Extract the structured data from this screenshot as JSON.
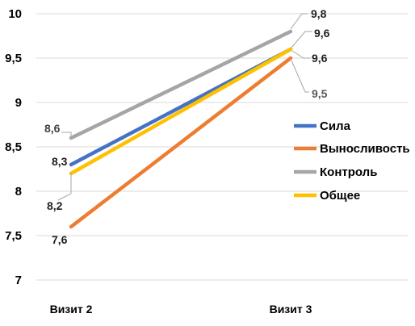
{
  "chart_data": {
    "type": "line",
    "categories": [
      "Визит 2",
      "Визит 3"
    ],
    "ylim": [
      7,
      10
    ],
    "yticks": [
      "7",
      "7,5",
      "8",
      "8,5",
      "9",
      "9,5",
      "10"
    ],
    "grid": true,
    "legend": "right",
    "series": [
      {
        "name": "Сила",
        "values": [
          8.3,
          9.6
        ],
        "labels": [
          "8,3",
          "9,6"
        ],
        "color": "#4472C4"
      },
      {
        "name": "Выносливость",
        "values": [
          7.6,
          9.5
        ],
        "labels": [
          "7,6",
          "9,5"
        ],
        "color": "#ED7D31"
      },
      {
        "name": "Контроль",
        "values": [
          8.6,
          9.8
        ],
        "labels": [
          "8,6",
          "9,8"
        ],
        "color": "#A5A5A5"
      },
      {
        "name": "Общее",
        "values": [
          8.2,
          9.6
        ],
        "labels": [
          "8,2",
          "9,6"
        ],
        "color": "#FFC000"
      }
    ]
  }
}
